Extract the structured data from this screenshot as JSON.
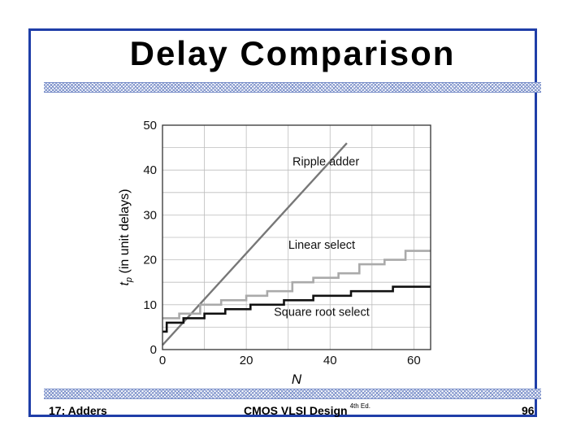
{
  "slide": {
    "title": "Delay Comparison",
    "footer_left": "17: Adders",
    "footer_center": "CMOS VLSI Design",
    "footer_edition": "4th Ed.",
    "footer_page": "96",
    "border_color": "#1f3ea8",
    "hatch_color": "#7a8fc9"
  },
  "chart_data": {
    "type": "line",
    "xlabel": "N",
    "ylabel": "t_p (in unit delays)",
    "xlim": [
      0,
      64
    ],
    "ylim": [
      0,
      50
    ],
    "xticks": [
      0,
      20,
      40,
      60
    ],
    "xtick_labels": [
      "0",
      "20",
      "40",
      "60"
    ],
    "yticks": [
      0,
      10,
      20,
      30,
      40,
      50
    ],
    "ytick_labels": [
      "0",
      "10",
      "20",
      "30",
      "40",
      "50"
    ],
    "grid": true,
    "series": [
      {
        "name": "Ripple adder",
        "color": "#777777",
        "step": false,
        "points": [
          [
            0,
            1
          ],
          [
            44,
            46
          ]
        ]
      },
      {
        "name": "Linear select",
        "color": "#aaaaaa",
        "step": true,
        "points": [
          [
            0,
            7
          ],
          [
            4,
            7
          ],
          [
            4,
            8
          ],
          [
            9,
            8
          ],
          [
            9,
            10
          ],
          [
            14,
            10
          ],
          [
            14,
            11
          ],
          [
            20,
            11
          ],
          [
            20,
            12
          ],
          [
            25,
            12
          ],
          [
            25,
            13
          ],
          [
            31,
            13
          ],
          [
            31,
            15
          ],
          [
            36,
            15
          ],
          [
            36,
            16
          ],
          [
            42,
            16
          ],
          [
            42,
            17
          ],
          [
            47,
            17
          ],
          [
            47,
            19
          ],
          [
            53,
            19
          ],
          [
            53,
            20
          ],
          [
            58,
            20
          ],
          [
            58,
            22
          ],
          [
            64,
            22
          ]
        ]
      },
      {
        "name": "Square root select",
        "color": "#111111",
        "step": true,
        "points": [
          [
            0,
            4
          ],
          [
            1,
            4
          ],
          [
            1,
            6
          ],
          [
            5,
            6
          ],
          [
            5,
            7
          ],
          [
            10,
            7
          ],
          [
            10,
            8
          ],
          [
            15,
            8
          ],
          [
            15,
            9
          ],
          [
            21,
            9
          ],
          [
            21,
            10
          ],
          [
            29,
            10
          ],
          [
            29,
            11
          ],
          [
            36,
            11
          ],
          [
            36,
            12
          ],
          [
            45,
            12
          ],
          [
            45,
            13
          ],
          [
            55,
            13
          ],
          [
            55,
            14
          ],
          [
            64,
            14
          ]
        ]
      }
    ]
  }
}
